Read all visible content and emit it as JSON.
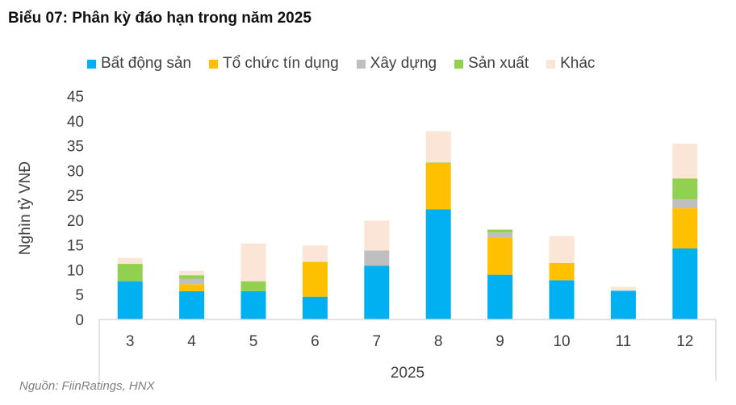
{
  "title": "Biểu 07: Phân kỳ đáo hạn trong năm 2025",
  "source": "Nguồn: FiinRatings, HNX",
  "chart_data": {
    "type": "bar",
    "stacked": true,
    "categories": [
      "3",
      "4",
      "5",
      "6",
      "7",
      "8",
      "9",
      "10",
      "11",
      "12"
    ],
    "xlabel": "2025",
    "ylabel": "Nghìn tỷ VNĐ",
    "ylim": [
      0,
      45
    ],
    "yticks": [
      0,
      5,
      10,
      15,
      20,
      25,
      30,
      35,
      40,
      45
    ],
    "grid": false,
    "legend": "top",
    "series": [
      {
        "name": "Bất động sản",
        "color": "#00B0F0",
        "values": [
          7.7,
          5.7,
          5.7,
          4.6,
          10.8,
          22.2,
          9.0,
          7.9,
          5.8,
          14.3
        ]
      },
      {
        "name": "Tổ chức tín dụng",
        "color": "#FFC000",
        "values": [
          0,
          1.4,
          0,
          7.0,
          0,
          9.2,
          7.5,
          3.5,
          0,
          8.1
        ]
      },
      {
        "name": "Xây dựng",
        "color": "#BFBFBF",
        "values": [
          0,
          1.1,
          0,
          0,
          3.1,
          0,
          1.0,
          0,
          0,
          1.8
        ]
      },
      {
        "name": "Sản xuất",
        "color": "#92D050",
        "values": [
          3.5,
          0.7,
          2.0,
          0,
          0,
          0.2,
          0.6,
          0,
          0,
          4.2
        ]
      },
      {
        "name": "Khác",
        "color": "#FBE5D6",
        "values": [
          1.2,
          0.9,
          7.6,
          3.3,
          6.0,
          6.3,
          0,
          5.4,
          0.8,
          7.0
        ]
      }
    ]
  }
}
